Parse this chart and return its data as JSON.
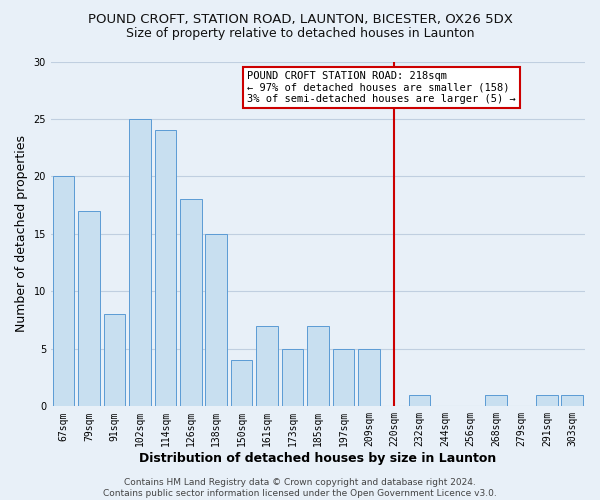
{
  "title": "POUND CROFT, STATION ROAD, LAUNTON, BICESTER, OX26 5DX",
  "subtitle": "Size of property relative to detached houses in Launton",
  "xlabel": "Distribution of detached houses by size in Launton",
  "ylabel": "Number of detached properties",
  "categories": [
    "67sqm",
    "79sqm",
    "91sqm",
    "102sqm",
    "114sqm",
    "126sqm",
    "138sqm",
    "150sqm",
    "161sqm",
    "173sqm",
    "185sqm",
    "197sqm",
    "209sqm",
    "220sqm",
    "232sqm",
    "244sqm",
    "256sqm",
    "268sqm",
    "279sqm",
    "291sqm",
    "303sqm"
  ],
  "values": [
    20,
    17,
    8,
    25,
    24,
    18,
    15,
    4,
    7,
    5,
    7,
    5,
    5,
    0,
    1,
    0,
    0,
    1,
    0,
    1,
    1
  ],
  "bar_color": "#c8dff0",
  "bar_edge_color": "#5b9bd5",
  "vline_color": "#cc0000",
  "annotation_text": "POUND CROFT STATION ROAD: 218sqm\n← 97% of detached houses are smaller (158)\n3% of semi-detached houses are larger (5) →",
  "annotation_box_color": "#ffffff",
  "annotation_box_edge_color": "#cc0000",
  "footer_text": "Contains HM Land Registry data © Crown copyright and database right 2024.\nContains public sector information licensed under the Open Government Licence v3.0.",
  "ylim": [
    0,
    30
  ],
  "background_color": "#e8f0f8",
  "grid_color": "#c0cfe0",
  "title_fontsize": 9.5,
  "subtitle_fontsize": 9,
  "axis_label_fontsize": 9,
  "tick_fontsize": 7,
  "footer_fontsize": 6.5,
  "annotation_fontsize": 7.5
}
